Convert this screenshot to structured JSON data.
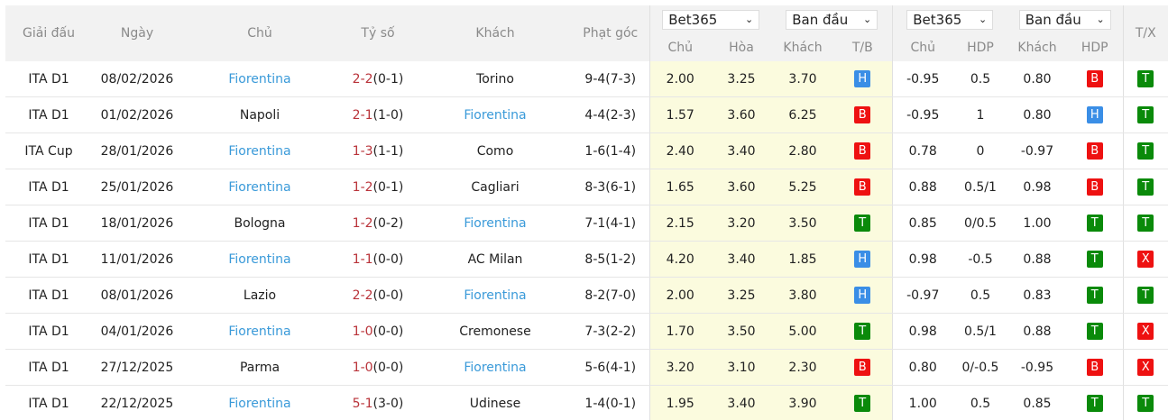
{
  "headers": {
    "league": "Giải đấu",
    "date": "Ngày",
    "home": "Chủ",
    "score": "Tỷ số",
    "away": "Khách",
    "corners": "Phạt góc",
    "tx": "T/X"
  },
  "odds1x2": {
    "bookmaker": "Bet365",
    "type": "Ban đầu",
    "cols": [
      "Chủ",
      "Hòa",
      "Khách",
      "T/B"
    ]
  },
  "oddsHdp": {
    "bookmaker": "Bet365",
    "type": "Ban đầu",
    "cols": [
      "Chủ",
      "HDP",
      "Khách",
      "HDP"
    ]
  },
  "badge_colors": {
    "H": "#3a8ee6",
    "B": "#ee1111",
    "T": "#0a8a0a",
    "X": "#ee1111"
  },
  "rows": [
    {
      "league": "ITA D1",
      "date": "08/02/2026",
      "home": "Fiorentina",
      "ft": "2-2",
      "ht": "(0-1)",
      "away": "Torino",
      "corners": "9-4(7-3)",
      "h": "2.00",
      "d": "3.25",
      "a": "3.70",
      "tb": "H",
      "hh": "-0.95",
      "hdp": "0.5",
      "ha": "0.80",
      "hr": "B",
      "tx": "T",
      "fioHome": true
    },
    {
      "league": "ITA D1",
      "date": "01/02/2026",
      "home": "Napoli",
      "ft": "2-1",
      "ht": "(1-0)",
      "away": "Fiorentina",
      "corners": "4-4(2-3)",
      "h": "1.57",
      "d": "3.60",
      "a": "6.25",
      "tb": "B",
      "hh": "-0.95",
      "hdp": "1",
      "ha": "0.80",
      "hr": "H",
      "tx": "T",
      "fioHome": false
    },
    {
      "league": "ITA Cup",
      "date": "28/01/2026",
      "home": "Fiorentina",
      "ft": "1-3",
      "ht": "(1-1)",
      "away": "Como",
      "corners": "1-6(1-4)",
      "h": "2.40",
      "d": "3.40",
      "a": "2.80",
      "tb": "B",
      "hh": "0.78",
      "hdp": "0",
      "ha": "-0.97",
      "hr": "B",
      "tx": "T",
      "fioHome": true
    },
    {
      "league": "ITA D1",
      "date": "25/01/2026",
      "home": "Fiorentina",
      "ft": "1-2",
      "ht": "(0-1)",
      "away": "Cagliari",
      "corners": "8-3(6-1)",
      "h": "1.65",
      "d": "3.60",
      "a": "5.25",
      "tb": "B",
      "hh": "0.88",
      "hdp": "0.5/1",
      "ha": "0.98",
      "hr": "B",
      "tx": "T",
      "fioHome": true
    },
    {
      "league": "ITA D1",
      "date": "18/01/2026",
      "home": "Bologna",
      "ft": "1-2",
      "ht": "(0-2)",
      "away": "Fiorentina",
      "corners": "7-1(4-1)",
      "h": "2.15",
      "d": "3.20",
      "a": "3.50",
      "tb": "T",
      "hh": "0.85",
      "hdp": "0/0.5",
      "ha": "1.00",
      "hr": "T",
      "tx": "T",
      "fioHome": false
    },
    {
      "league": "ITA D1",
      "date": "11/01/2026",
      "home": "Fiorentina",
      "ft": "1-1",
      "ht": "(0-0)",
      "away": "AC Milan",
      "corners": "8-5(1-2)",
      "h": "4.20",
      "d": "3.40",
      "a": "1.85",
      "tb": "H",
      "hh": "0.98",
      "hdp": "-0.5",
      "ha": "0.88",
      "hr": "T",
      "tx": "X",
      "fioHome": true
    },
    {
      "league": "ITA D1",
      "date": "08/01/2026",
      "home": "Lazio",
      "ft": "2-2",
      "ht": "(0-0)",
      "away": "Fiorentina",
      "corners": "8-2(7-0)",
      "h": "2.00",
      "d": "3.25",
      "a": "3.80",
      "tb": "H",
      "hh": "-0.97",
      "hdp": "0.5",
      "ha": "0.83",
      "hr": "T",
      "tx": "T",
      "fioHome": false
    },
    {
      "league": "ITA D1",
      "date": "04/01/2026",
      "home": "Fiorentina",
      "ft": "1-0",
      "ht": "(0-0)",
      "away": "Cremonese",
      "corners": "7-3(2-2)",
      "h": "1.70",
      "d": "3.50",
      "a": "5.00",
      "tb": "T",
      "hh": "0.98",
      "hdp": "0.5/1",
      "ha": "0.88",
      "hr": "T",
      "tx": "X",
      "fioHome": true
    },
    {
      "league": "ITA D1",
      "date": "27/12/2025",
      "home": "Parma",
      "ft": "1-0",
      "ht": "(0-0)",
      "away": "Fiorentina",
      "corners": "5-6(4-1)",
      "h": "3.20",
      "d": "3.10",
      "a": "2.30",
      "tb": "B",
      "hh": "0.80",
      "hdp": "0/-0.5",
      "ha": "-0.95",
      "hr": "B",
      "tx": "X",
      "fioHome": false
    },
    {
      "league": "ITA D1",
      "date": "22/12/2025",
      "home": "Fiorentina",
      "ft": "5-1",
      "ht": "(3-0)",
      "away": "Udinese",
      "corners": "1-4(0-1)",
      "h": "1.95",
      "d": "3.40",
      "a": "3.90",
      "tb": "T",
      "hh": "1.00",
      "hdp": "0.5",
      "ha": "0.85",
      "hr": "T",
      "tx": "T",
      "fioHome": true
    }
  ]
}
